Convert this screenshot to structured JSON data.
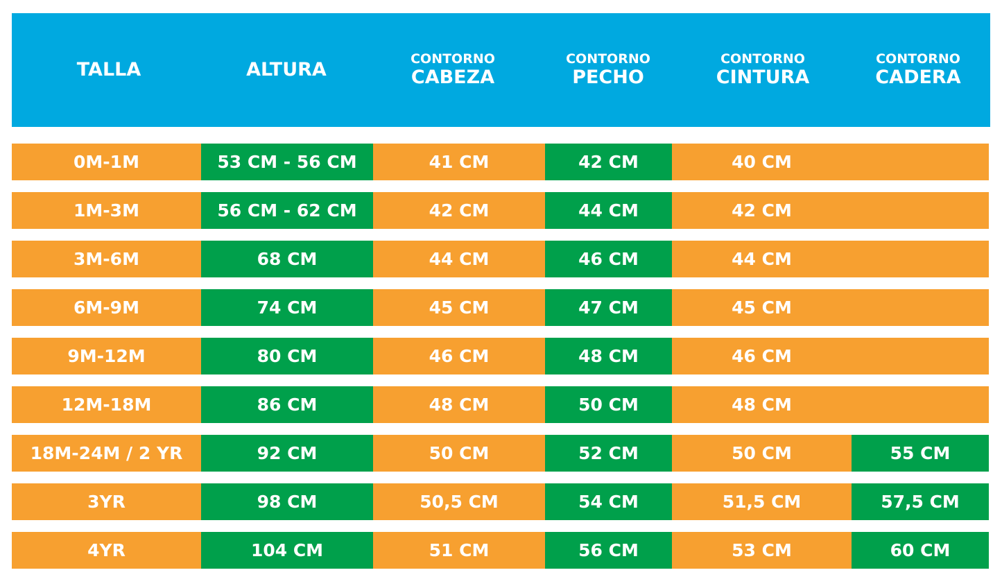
{
  "table": {
    "header": [
      {
        "label": "TALLA"
      },
      {
        "label": "ALTURA"
      },
      {
        "prefix": "CONTORNO",
        "label": "CABEZA"
      },
      {
        "prefix": "CONTORNO",
        "label": "PECHO"
      },
      {
        "prefix": "CONTORNO",
        "label": "CINTURA"
      },
      {
        "prefix": "CONTORNO",
        "label": "CADERA"
      }
    ],
    "rows": [
      [
        "0M-1M",
        "53 CM - 56 CM",
        "41 CM",
        "42 CM",
        "40 CM",
        null
      ],
      [
        "1M-3M",
        "56 CM - 62 CM",
        "42 CM",
        "44 CM",
        "42 CM",
        null
      ],
      [
        "3M-6M",
        "68 CM",
        "44 CM",
        "46 CM",
        "44 CM",
        null
      ],
      [
        "6M-9M",
        "74 CM",
        "45 CM",
        "47 CM",
        "45 CM",
        null
      ],
      [
        "9M-12M",
        "80 CM",
        "46 CM",
        "48 CM",
        "46 CM",
        null
      ],
      [
        "12M-18M",
        "86 CM",
        "48 CM",
        "50 CM",
        "48 CM",
        null
      ],
      [
        "18M-24M / 2 YR",
        "92 CM",
        "50 CM",
        "52 CM",
        "50 CM",
        "55 CM"
      ],
      [
        "3YR",
        "98 CM",
        "50,5 CM",
        "54 CM",
        "51,5 CM",
        "57,5 CM"
      ],
      [
        "4YR",
        "104 CM",
        "51 CM",
        "56 CM",
        "53 CM",
        "60 CM"
      ]
    ]
  }
}
